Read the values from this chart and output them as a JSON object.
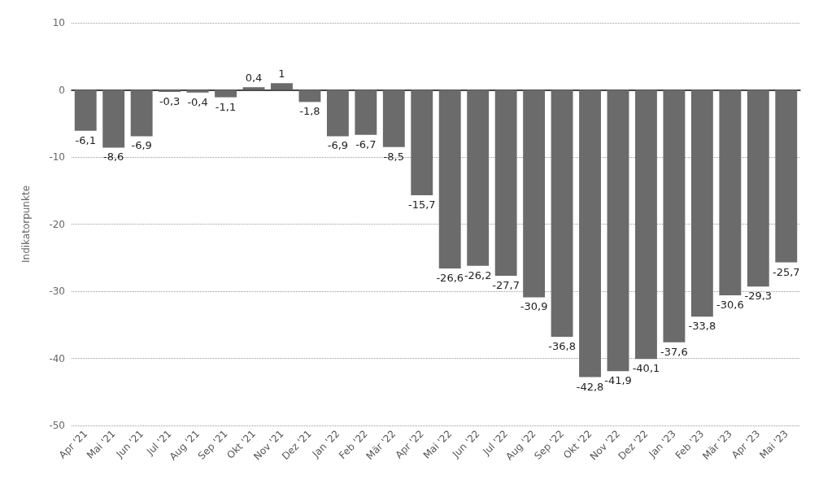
{
  "chart_data": {
    "type": "bar",
    "ylabel": "Indikatorpunkte",
    "categories": [
      "Apr '21",
      "Mai '21",
      "Jun '21",
      "Jul '21",
      "Aug '21",
      "Sep '21",
      "Okt '21",
      "Nov '21",
      "Dez '21",
      "Jan '22",
      "Feb '22",
      "Mär '22",
      "Apr '22",
      "Mai '22",
      "Jun '22",
      "Jul '22",
      "Aug '22",
      "Sep '22",
      "Okt '22",
      "Nov '22",
      "Dez '22",
      "Jan '23",
      "Feb '23",
      "Mär '23",
      "Apr '23",
      "Mai '23"
    ],
    "values": [
      -6.1,
      -8.6,
      -6.9,
      -0.3,
      -0.4,
      -1.1,
      0.4,
      1,
      -1.8,
      -6.9,
      -6.7,
      -8.5,
      -15.7,
      -26.6,
      -26.2,
      -27.7,
      -30.9,
      -36.8,
      -42.8,
      -41.9,
      -40.1,
      -37.6,
      -33.8,
      -30.6,
      -29.3,
      -25.7
    ],
    "value_labels": [
      "-6,1",
      "-8,6",
      "-6,9",
      "-0,3",
      "-0,4",
      "-1,1",
      "0,4",
      "1",
      "-1,8",
      "-6,9",
      "-6,7",
      "-8,5",
      "-15,7",
      "-26,6",
      "-26,2",
      "-27,7",
      "-30,9",
      "-36,8",
      "-42,8",
      "-41,9",
      "-40,1",
      "-37,6",
      "-33,8",
      "-30,6",
      "-29,3",
      "-25,7"
    ],
    "color": "#6b6b6b",
    "ylim": [
      -50,
      10
    ],
    "yticks": [
      -50,
      -40,
      -30,
      -20,
      -10,
      0,
      10
    ],
    "grid": "y"
  }
}
